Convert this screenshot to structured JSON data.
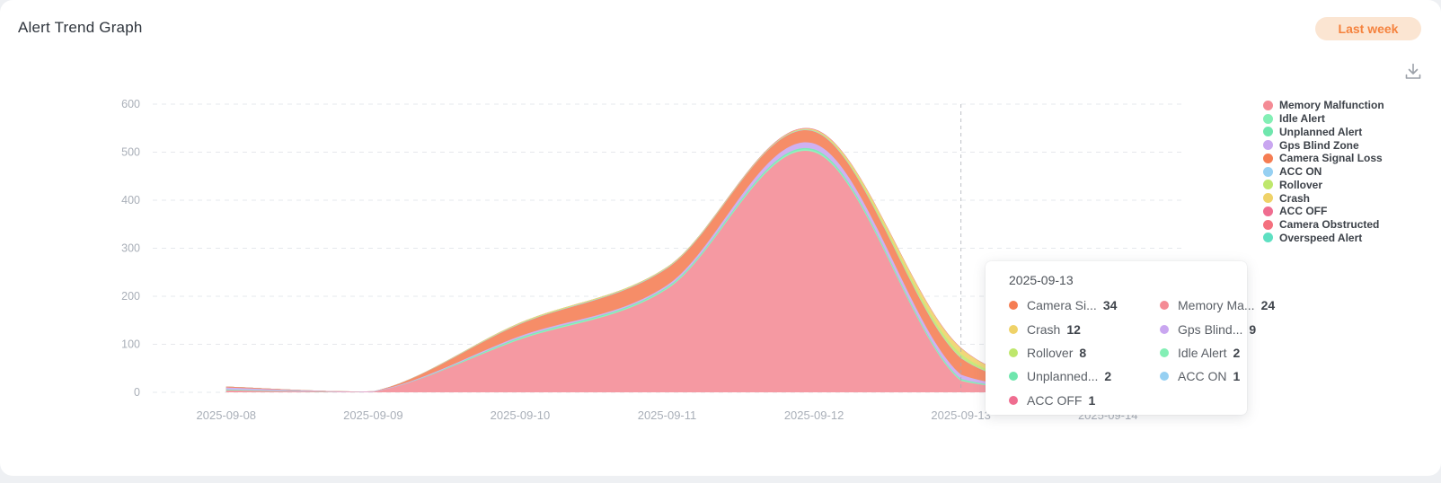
{
  "header": {
    "title": "Alert Trend Graph",
    "range_badge": "Last week"
  },
  "toolbar": {
    "download_icon": "download-icon"
  },
  "colors": {
    "badge_bg": "#FBE5D2",
    "badge_text": "#F5823D",
    "axis_label": "#A9AFB8",
    "grid_line": "#E6E8EC",
    "pointer_line": "#A6ABB3",
    "card_bg": "#FFFFFF",
    "page_bg": "#EEF0F3",
    "legend_text": "#3C4148",
    "icon_gray": "#9BA0A8"
  },
  "chart_data": {
    "type": "area",
    "stacked": true,
    "smooth": true,
    "title": "Alert Trend Graph",
    "grid": "dashed",
    "legend_position": "right",
    "x": [
      "2025-09-08",
      "2025-09-09",
      "2025-09-10",
      "2025-09-11",
      "2025-09-12",
      "2025-09-13",
      "2025-09-14"
    ],
    "ylim": [
      0,
      600
    ],
    "yticks": [
      0,
      100,
      200,
      300,
      400,
      500,
      600
    ],
    "axis_pointer_x": "2025-09-13",
    "series": [
      {
        "name": "Memory Malfunction",
        "color": "#F48B95",
        "values": [
          4,
          1,
          110,
          215,
          500,
          24,
          4
        ]
      },
      {
        "name": "Idle Alert",
        "color": "#83EFB5",
        "values": [
          1,
          0,
          2,
          2,
          3,
          2,
          0
        ]
      },
      {
        "name": "Unplanned Alert",
        "color": "#6FE6AD",
        "values": [
          1,
          0,
          2,
          2,
          3,
          2,
          0
        ]
      },
      {
        "name": "Gps Blind Zone",
        "color": "#C9A6F0",
        "values": [
          4,
          1,
          3,
          4,
          12,
          9,
          2
        ]
      },
      {
        "name": "Camera Signal Loss",
        "color": "#F57D53",
        "values": [
          2,
          0,
          25,
          35,
          25,
          34,
          3
        ]
      },
      {
        "name": "ACC ON",
        "color": "#96D0F2",
        "values": [
          0,
          0,
          1,
          1,
          1,
          1,
          0
        ]
      },
      {
        "name": "Rollover",
        "color": "#BEE76C",
        "values": [
          0,
          0,
          1,
          1,
          1,
          8,
          1
        ]
      },
      {
        "name": "Crash",
        "color": "#EFD268",
        "values": [
          0,
          0,
          1,
          1,
          2,
          12,
          1
        ]
      },
      {
        "name": "ACC OFF",
        "color": "#EF6D90",
        "values": [
          0,
          0,
          0,
          0,
          1,
          1,
          0
        ]
      },
      {
        "name": "Camera Obstructed",
        "color": "#F4707E",
        "values": [
          0,
          0,
          0,
          0,
          0,
          0,
          0
        ]
      },
      {
        "name": "Overspeed Alert",
        "color": "#5EE0C2",
        "values": [
          0,
          0,
          0,
          0,
          0,
          0,
          0
        ]
      }
    ]
  },
  "tooltip": {
    "title": "2025-09-13",
    "items": [
      {
        "label": "Camera Si...",
        "value": 34,
        "color": "#F57D53"
      },
      {
        "label": "Memory Ma...",
        "value": 24,
        "color": "#F48B95"
      },
      {
        "label": "Crash",
        "value": 12,
        "color": "#EFD268"
      },
      {
        "label": "Gps Blind...",
        "value": 9,
        "color": "#C9A6F0"
      },
      {
        "label": "Rollover",
        "value": 8,
        "color": "#BEE76C"
      },
      {
        "label": "Idle Alert",
        "value": 2,
        "color": "#83EFB5"
      },
      {
        "label": "Unplanned...",
        "value": 2,
        "color": "#6FE6AD"
      },
      {
        "label": "ACC ON",
        "value": 1,
        "color": "#96D0F2"
      },
      {
        "label": "ACC OFF",
        "value": 1,
        "color": "#EF6D90"
      }
    ]
  }
}
